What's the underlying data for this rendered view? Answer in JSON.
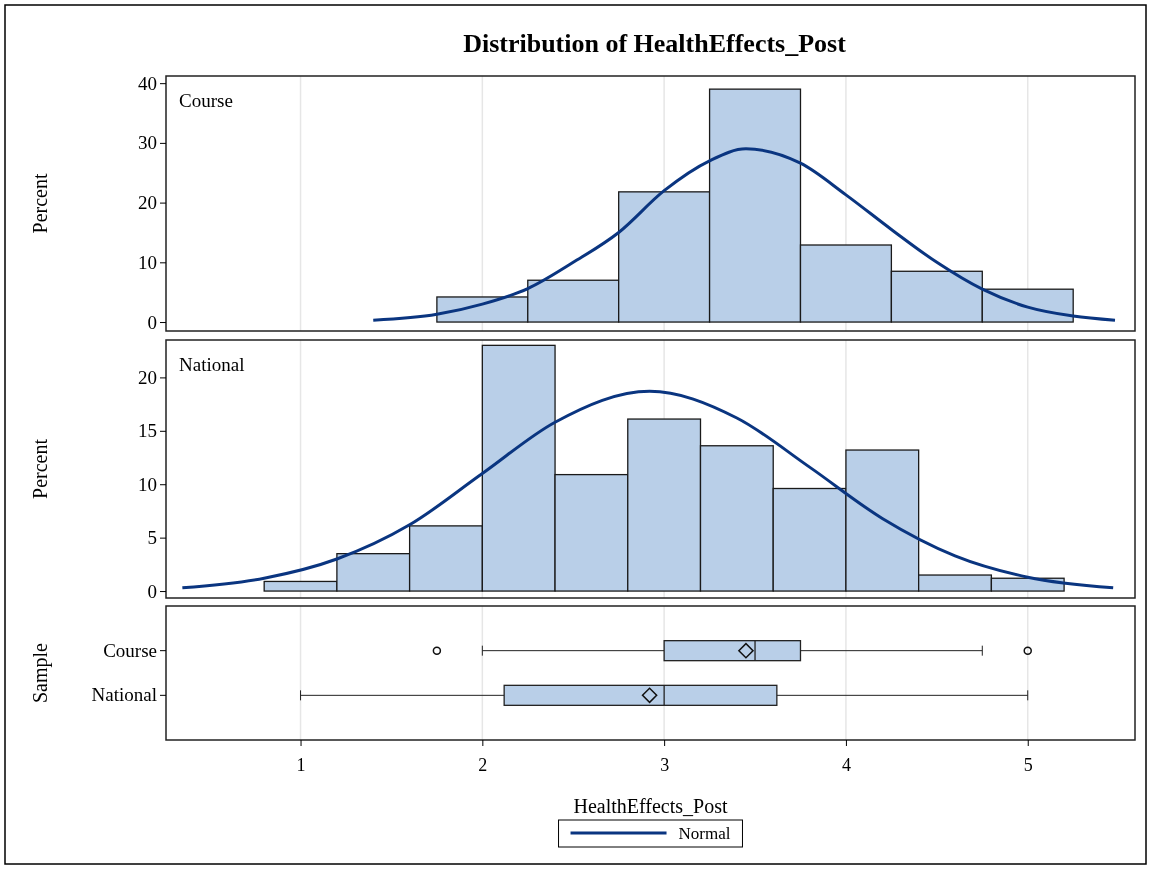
{
  "chart_data": [
    {
      "type": "histogram",
      "title": "Distribution of HealthEffects_Post",
      "ylabel": "Percent",
      "annotations": [
        "Course"
      ],
      "bins": [
        1.75,
        2.25,
        2.75,
        3.25,
        3.75,
        4.25,
        4.75,
        5.25
      ],
      "values": [
        4.2,
        7.0,
        21.8,
        39.0,
        12.9,
        8.5,
        5.5
      ],
      "color": "#b9cfe8",
      "xlim": [
        0.26,
        5.59
      ],
      "xticks": [
        1,
        2,
        3,
        4,
        5
      ],
      "ylim": [
        -1.5,
        41.2
      ],
      "yticks": [
        0,
        10,
        20,
        30,
        40
      ],
      "tick_labels": "y",
      "grid": "x",
      "series": [
        {
          "type": "line",
          "color": "#0a3580",
          "x": [
            1.4,
            1.75,
            2.0,
            2.25,
            2.5,
            2.75,
            3.0,
            3.25,
            3.45,
            3.75,
            4.0,
            4.25,
            4.5,
            4.75,
            5.0,
            5.25,
            5.48
          ],
          "values": [
            0.3,
            1.3,
            3.0,
            5.6,
            10,
            15,
            22,
            27,
            29,
            26.6,
            21.3,
            15.5,
            10,
            5.5,
            2.5,
            1.0,
            0.3
          ]
        }
      ]
    },
    {
      "type": "histogram",
      "ylabel": "Percent",
      "annotations": [
        "National"
      ],
      "bins": [
        0.8,
        1.2,
        1.6,
        2.0,
        2.4,
        2.8,
        3.2,
        3.6,
        4.0,
        4.4,
        4.8,
        5.2
      ],
      "values": [
        0.9,
        3.5,
        6.1,
        23.0,
        10.9,
        16.1,
        13.6,
        9.6,
        13.2,
        1.5,
        1.2
      ],
      "color": "#b9cfe8",
      "xlim": [
        0.26,
        5.59
      ],
      "xticks": [
        1,
        2,
        3,
        4,
        5
      ],
      "ylim": [
        -0.65,
        23.5
      ],
      "yticks": [
        0,
        5,
        10,
        15,
        20
      ],
      "tick_labels": "y",
      "grid": "x",
      "legend": "bottom",
      "series": [
        {
          "type": "line",
          "name": "Normal",
          "color": "#0a3580",
          "x": [
            0.35,
            0.8,
            1.2,
            1.6,
            2.0,
            2.4,
            2.92,
            3.4,
            3.8,
            4.2,
            4.6,
            5.0,
            5.47
          ],
          "values": [
            0.3,
            1.2,
            3.0,
            6.2,
            11.0,
            15.8,
            18.7,
            16.2,
            11.6,
            6.8,
            3.3,
            1.3,
            0.3
          ]
        }
      ]
    },
    {
      "type": "box",
      "orientation": "horizontal",
      "xlabel": "HealthEffects_Post",
      "ylabel": "Sample",
      "categories": [
        "Course",
        "National"
      ],
      "color": "#b9cfe8",
      "xlim": [
        0.26,
        5.59
      ],
      "xticks": [
        1,
        2,
        3,
        4,
        5
      ],
      "grid": "x",
      "boxes": [
        {
          "low": 2.0,
          "q1": 3.0,
          "median": 3.5,
          "q3": 3.75,
          "high": 4.75,
          "mean": 3.45,
          "outliers": [
            1.75,
            5.0
          ]
        },
        {
          "low": 1.0,
          "q1": 2.12,
          "median": 3.0,
          "q3": 3.62,
          "high": 5.0,
          "mean": 2.92
        }
      ]
    }
  ]
}
